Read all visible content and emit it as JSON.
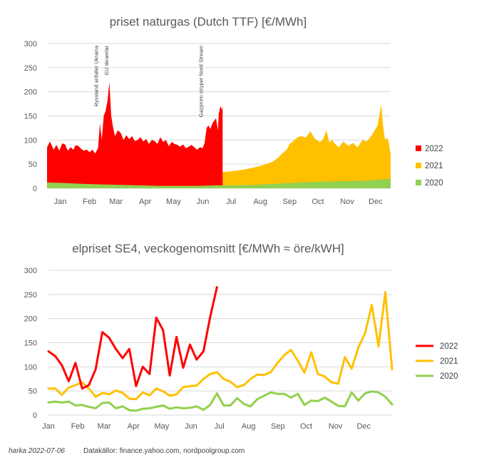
{
  "footer": {
    "author": "harka 2022-07-06",
    "sources": "Datakällor: finance.yahoo.com, nordpoolgroup.com"
  },
  "chart_data": [
    {
      "type": "area",
      "title": "priset naturgas (Dutch TTF) [€/MWh]",
      "xlabel": "",
      "ylabel": "",
      "ylim": [
        0,
        300
      ],
      "yticks": [
        0,
        50,
        100,
        150,
        200,
        250,
        300
      ],
      "months": [
        "Jan",
        "Feb",
        "Mar",
        "Apr",
        "May",
        "Jun",
        "Jul",
        "Aug",
        "Sep",
        "Oct",
        "Nov",
        "Dec"
      ],
      "grid": true,
      "legend_position": "right",
      "annotations": [
        {
          "text": "Ryssland anfaller Ukraina",
          "day": 55
        },
        {
          "text": "EU skramlar",
          "day": 66
        },
        {
          "text": "Gazprom stryper Nord Stream",
          "day": 166
        }
      ],
      "x_unit": "day of year",
      "series": [
        {
          "name": "2022",
          "color": "#ff0000",
          "x": [
            1,
            4,
            8,
            11,
            14,
            17,
            20,
            23,
            26,
            29,
            31,
            34,
            37,
            40,
            43,
            46,
            49,
            52,
            55,
            57,
            59,
            61,
            63,
            65,
            67,
            69,
            71,
            73,
            76,
            79,
            82,
            85,
            88,
            91,
            94,
            97,
            100,
            103,
            106,
            109,
            112,
            115,
            118,
            121,
            124,
            127,
            130,
            133,
            136,
            139,
            142,
            145,
            148,
            151,
            154,
            157,
            160,
            163,
            166,
            168,
            170,
            172,
            174,
            176,
            178,
            180,
            182,
            183,
            184,
            185,
            186,
            187
          ],
          "y": [
            85,
            97,
            80,
            90,
            78,
            93,
            91,
            78,
            85,
            80,
            89,
            88,
            82,
            78,
            80,
            75,
            80,
            72,
            83,
            134,
            100,
            150,
            160,
            180,
            220,
            150,
            125,
            108,
            120,
            115,
            100,
            110,
            102,
            108,
            98,
            100,
            106,
            97,
            102,
            92,
            100,
            98,
            92,
            106,
            96,
            100,
            87,
            96,
            92,
            90,
            86,
            91,
            83,
            86,
            90,
            85,
            80,
            85,
            83,
            95,
            125,
            130,
            123,
            134,
            140,
            145,
            120,
            155,
            165,
            170,
            162,
            170
          ]
        },
        {
          "name": "2021",
          "color": "#ffc000",
          "x": [
            1,
            10,
            20,
            30,
            40,
            50,
            60,
            70,
            80,
            90,
            100,
            110,
            120,
            130,
            140,
            150,
            160,
            170,
            180,
            190,
            200,
            210,
            220,
            230,
            240,
            245,
            250,
            255,
            258,
            262,
            266,
            270,
            275,
            280,
            285,
            290,
            293,
            297,
            300,
            303,
            306,
            310,
            315,
            320,
            325,
            330,
            335,
            340,
            345,
            348,
            351,
            353,
            355,
            357,
            359,
            361,
            363,
            365
          ],
          "y": [
            20,
            20,
            19,
            18,
            17,
            17,
            17,
            18,
            19,
            20,
            21,
            22,
            23,
            24,
            25,
            26,
            27,
            29,
            33,
            34,
            36,
            39,
            43,
            48,
            55,
            62,
            72,
            80,
            92,
            98,
            105,
            108,
            105,
            118,
            102,
            96,
            100,
            120,
            95,
            100,
            92,
            85,
            97,
            88,
            94,
            85,
            100,
            97,
            110,
            120,
            130,
            150,
            175,
            130,
            100,
            105,
            95,
            70
          ]
        },
        {
          "name": "2020",
          "color": "#92d050",
          "x": [
            1,
            20,
            40,
            60,
            80,
            100,
            120,
            140,
            160,
            180,
            200,
            220,
            240,
            260,
            280,
            300,
            320,
            340,
            360,
            365
          ],
          "y": [
            12,
            11,
            9,
            8,
            7,
            6,
            5,
            5,
            5,
            6,
            6,
            7,
            9,
            11,
            13,
            14,
            15,
            16,
            19,
            19
          ]
        }
      ]
    },
    {
      "type": "line",
      "title": "elpriset SE4, veckogenomsnitt [€/MWh ≈ öre/kWH]",
      "xlabel": "",
      "ylabel": "",
      "ylim": [
        0,
        300
      ],
      "yticks": [
        0,
        50,
        100,
        150,
        200,
        250,
        300
      ],
      "months": [
        "Jan",
        "Feb",
        "Mar",
        "Apr",
        "May",
        "Jun",
        "Jul",
        "Aug",
        "Sep",
        "Oct",
        "Nov",
        "Dec"
      ],
      "grid": true,
      "legend_position": "right",
      "x_unit": "week",
      "series": [
        {
          "name": "2022",
          "color": "#ff0000",
          "x": [
            1,
            2,
            3,
            4,
            5,
            6,
            7,
            8,
            9,
            10,
            11,
            12,
            13,
            14,
            15,
            16,
            17,
            18,
            19,
            20,
            21,
            22,
            23,
            24,
            25,
            26
          ],
          "y": [
            132,
            122,
            103,
            70,
            108,
            55,
            62,
            95,
            172,
            160,
            137,
            118,
            137,
            60,
            100,
            85,
            202,
            176,
            82,
            162,
            98,
            146,
            115,
            132,
            203,
            265
          ]
        },
        {
          "name": "2021",
          "color": "#ffc000",
          "x": [
            1,
            2,
            3,
            4,
            5,
            6,
            7,
            8,
            9,
            10,
            11,
            12,
            13,
            14,
            15,
            16,
            17,
            18,
            19,
            20,
            21,
            22,
            23,
            24,
            25,
            26,
            27,
            28,
            29,
            30,
            31,
            32,
            33,
            34,
            35,
            36,
            37,
            38,
            39,
            40,
            41,
            42,
            43,
            44,
            45,
            46,
            47,
            48,
            49,
            50,
            51,
            52
          ],
          "y": [
            55,
            55,
            42,
            57,
            62,
            68,
            55,
            38,
            46,
            43,
            51,
            46,
            34,
            33,
            47,
            41,
            55,
            49,
            40,
            43,
            58,
            60,
            61,
            75,
            85,
            89,
            75,
            69,
            58,
            62,
            75,
            84,
            83,
            89,
            108,
            124,
            135,
            113,
            88,
            130,
            85,
            80,
            68,
            65,
            120,
            96,
            140,
            170,
            228,
            142,
            255,
            95
          ]
        },
        {
          "name": "2020",
          "color": "#92d050",
          "x": [
            1,
            2,
            3,
            4,
            5,
            6,
            7,
            8,
            9,
            10,
            11,
            12,
            13,
            14,
            15,
            16,
            17,
            18,
            19,
            20,
            21,
            22,
            23,
            24,
            25,
            26,
            27,
            28,
            29,
            30,
            31,
            32,
            33,
            34,
            35,
            36,
            37,
            38,
            39,
            40,
            41,
            42,
            43,
            44,
            45,
            46,
            47,
            48,
            49,
            50,
            51,
            52
          ],
          "y": [
            26,
            28,
            26,
            28,
            20,
            21,
            17,
            14,
            25,
            26,
            14,
            18,
            10,
            9,
            13,
            14,
            17,
            20,
            13,
            16,
            14,
            15,
            18,
            11,
            21,
            45,
            20,
            20,
            35,
            23,
            18,
            33,
            40,
            47,
            44,
            44,
            36,
            44,
            21,
            30,
            29,
            36,
            28,
            19,
            18,
            47,
            30,
            45,
            49,
            47,
            38,
            22
          ]
        }
      ]
    }
  ]
}
